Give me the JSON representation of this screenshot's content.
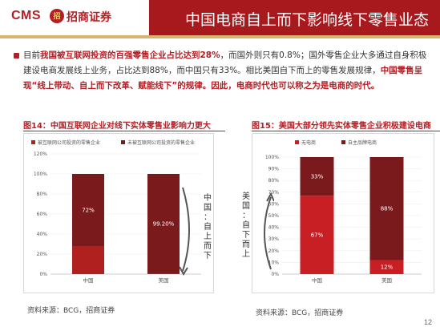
{
  "header": {
    "logo_text": "CMS",
    "logo_emblem": "招",
    "logo_cn": "招商证券",
    "title": "中国电商自上而下影响线下零售业态"
  },
  "intro": {
    "part1": "目前",
    "part2": "我国被互联网投资的百强零售企业占比达到28%",
    "part3": "，而国外则只有0.8%；国外零售企业大多通过自身积极建设电商发展线上业务，占比达到88%，而中国只有33%。相比美国自下而上的零售发展规律，",
    "part4": "中国零售呈现“线上带动、自上而下改革、赋能线下”的规律。因此，电商时代也可以称之为是电商的时代。"
  },
  "figures": {
    "left_caption": "图14：中国互联网企业对线下实体零售业影响力更大",
    "right_caption": "图15：美国大部分领先实体零售企业积极建设电商",
    "left_side_label": [
      "中",
      "国",
      "：",
      "自",
      "上",
      "而",
      "下"
    ],
    "right_side_label": [
      "美",
      "国",
      "：",
      "自",
      "下",
      "而",
      "上"
    ]
  },
  "sources": {
    "left": "资料来源：BCG，招商证券",
    "right": "资料来源：BCG，招商证券"
  },
  "page_number": "12",
  "chart_data": [
    {
      "type": "bar",
      "stacked": true,
      "categories": [
        "中国",
        "美国"
      ],
      "series": [
        {
          "name": "被互联网公司投资的零售企业",
          "values": [
            28,
            0.8
          ],
          "color": "#b0201f",
          "labels": [
            "",
            ""
          ]
        },
        {
          "name": "未被互联网公司投资的零售企业",
          "values": [
            72,
            99.2
          ],
          "color": "#7b1a1c",
          "labels": [
            "72%",
            "99.20%"
          ]
        }
      ],
      "yticks": [
        "0%",
        "20%",
        "40%",
        "60%",
        "80%",
        "100%",
        "120%"
      ],
      "ylim": [
        0,
        120
      ],
      "legend": "top"
    },
    {
      "type": "bar",
      "stacked": true,
      "categories": [
        "中国",
        "美国"
      ],
      "series": [
        {
          "name": "无电商",
          "values": [
            67,
            12
          ],
          "color": "#c81f25",
          "labels": [
            "67%",
            "12%"
          ]
        },
        {
          "name": "自主品牌电商",
          "values": [
            33,
            88
          ],
          "color": "#7b1a1c",
          "labels": [
            "33%",
            "88%"
          ]
        }
      ],
      "yticks": [
        "0%",
        "10%",
        "20%",
        "30%",
        "40%",
        "50%",
        "60%",
        "70%",
        "80%",
        "90%",
        "100%"
      ],
      "ylim": [
        0,
        100
      ],
      "legend": "top"
    }
  ],
  "colors": {
    "brand_red": "#a8191e",
    "accent_gold": "#d9b46e",
    "text_red": "#b41e24"
  }
}
